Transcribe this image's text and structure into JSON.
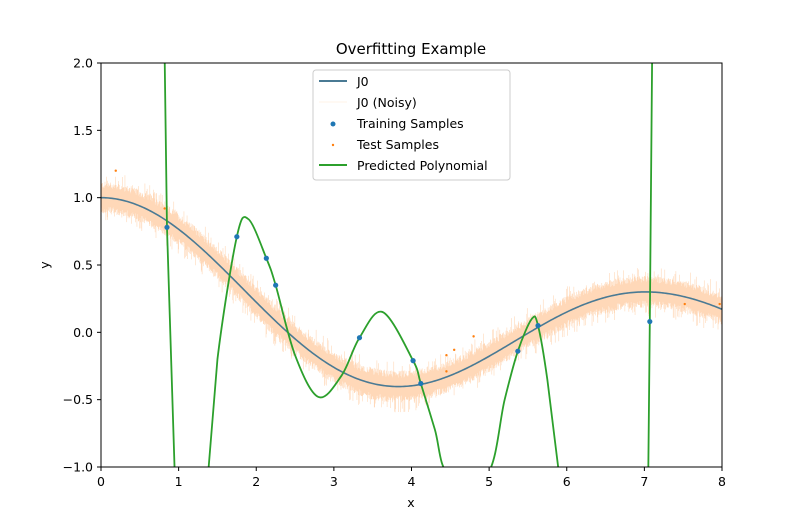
{
  "chart_data": {
    "type": "line",
    "title": "Overfitting Example",
    "xlabel": "x",
    "ylabel": "y",
    "xlim": [
      0,
      8
    ],
    "ylim": [
      -1.0,
      2.0
    ],
    "xticks": [
      "0",
      "1",
      "2",
      "3",
      "4",
      "5",
      "6",
      "7",
      "8"
    ],
    "yticks": [
      "−1.0",
      "−0.5",
      "0.0",
      "0.5",
      "1.0",
      "1.5",
      "2.0"
    ],
    "legend_position": "upper center",
    "colors": {
      "j0": "#4a7a94",
      "noisy": "#ffd4b0",
      "training": "#1f77b4",
      "test": "#ff7f0e",
      "polynomial": "#2ca02c"
    },
    "series": [
      {
        "name": "J0",
        "kind": "line",
        "function": "bessel_j0",
        "x_range": [
          0,
          8
        ]
      },
      {
        "name": "J0 (Noisy)",
        "kind": "band",
        "function": "bessel_j0",
        "noise_amplitude": 0.12
      },
      {
        "name": "Training Samples",
        "kind": "scatter",
        "points": [
          {
            "x": 0.85,
            "y": 0.78
          },
          {
            "x": 1.75,
            "y": 0.71
          },
          {
            "x": 2.13,
            "y": 0.55
          },
          {
            "x": 2.25,
            "y": 0.35
          },
          {
            "x": 3.33,
            "y": -0.04
          },
          {
            "x": 4.02,
            "y": -0.21
          },
          {
            "x": 4.12,
            "y": -0.38
          },
          {
            "x": 5.37,
            "y": -0.14
          },
          {
            "x": 5.63,
            "y": 0.05
          },
          {
            "x": 7.07,
            "y": 0.08
          }
        ]
      },
      {
        "name": "Test Samples",
        "kind": "scatter",
        "points": [
          {
            "x": 0.19,
            "y": 1.2
          },
          {
            "x": 0.82,
            "y": 0.92
          },
          {
            "x": 4.45,
            "y": -0.17
          },
          {
            "x": 4.45,
            "y": -0.29
          },
          {
            "x": 4.55,
            "y": -0.13
          },
          {
            "x": 4.8,
            "y": -0.03
          },
          {
            "x": 7.52,
            "y": 0.21
          },
          {
            "x": 7.97,
            "y": 0.21
          }
        ]
      },
      {
        "name": "Predicted Polynomial",
        "kind": "line",
        "points": [
          {
            "x": 0.82,
            "y": 2.05
          },
          {
            "x": 0.85,
            "y": 0.78
          },
          {
            "x": 0.95,
            "y": -1.05
          },
          {
            "x": 1.38,
            "y": -1.05
          },
          {
            "x": 1.5,
            "y": -0.2
          },
          {
            "x": 1.75,
            "y": 0.71
          },
          {
            "x": 1.9,
            "y": 0.84
          },
          {
            "x": 2.13,
            "y": 0.55
          },
          {
            "x": 2.25,
            "y": 0.35
          },
          {
            "x": 2.5,
            "y": -0.17
          },
          {
            "x": 2.8,
            "y": -0.48
          },
          {
            "x": 3.1,
            "y": -0.32
          },
          {
            "x": 3.33,
            "y": -0.04
          },
          {
            "x": 3.63,
            "y": 0.15
          },
          {
            "x": 4.02,
            "y": -0.21
          },
          {
            "x": 4.12,
            "y": -0.38
          },
          {
            "x": 4.3,
            "y": -0.72
          },
          {
            "x": 4.47,
            "y": -1.05
          },
          {
            "x": 4.98,
            "y": -1.05
          },
          {
            "x": 5.2,
            "y": -0.5
          },
          {
            "x": 5.37,
            "y": -0.14
          },
          {
            "x": 5.55,
            "y": 0.1
          },
          {
            "x": 5.63,
            "y": 0.05
          },
          {
            "x": 5.75,
            "y": -0.35
          },
          {
            "x": 5.9,
            "y": -1.05
          },
          {
            "x": 7.05,
            "y": -1.05
          },
          {
            "x": 7.07,
            "y": 0.08
          },
          {
            "x": 7.1,
            "y": 2.05
          }
        ]
      }
    ]
  }
}
